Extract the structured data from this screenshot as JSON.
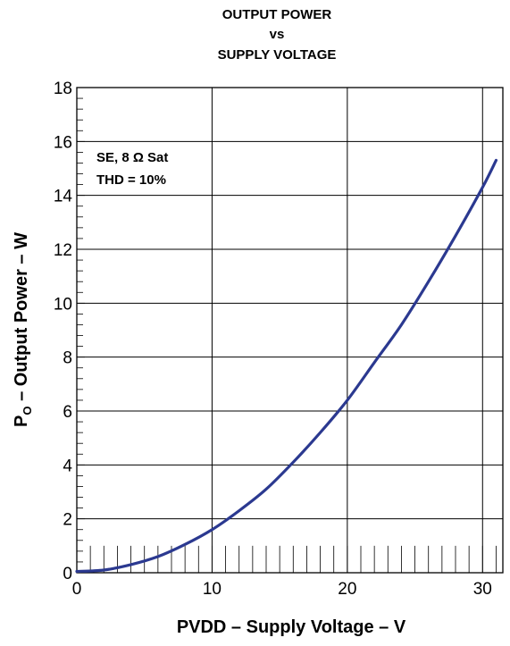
{
  "chart_data": {
    "type": "line",
    "title_lines": [
      "OUTPUT POWER",
      "vs",
      "SUPPLY VOLTAGE"
    ],
    "xlabel": "PVDD – Supply Voltage – V",
    "ylabel_prefix": "P",
    "ylabel_subscript": "O",
    "ylabel_suffix": " – Output Power – W",
    "xlim": [
      0,
      31.5
    ],
    "ylim": [
      0,
      18
    ],
    "xticks": [
      "0",
      "10",
      "20",
      "30"
    ],
    "yticks": [
      "0",
      "2",
      "4",
      "6",
      "8",
      "10",
      "12",
      "14",
      "16",
      "18"
    ],
    "grid": true,
    "annotation_lines": [
      "SE, 8 Ω Sat",
      "THD = 10%"
    ],
    "series_color": "#2B3990",
    "series": [
      {
        "x": [
          0,
          2,
          4,
          6,
          8,
          10,
          12,
          14,
          16,
          18,
          20,
          22,
          24,
          26,
          28,
          30,
          31
        ],
        "y": [
          0.05,
          0.1,
          0.3,
          0.6,
          1.05,
          1.6,
          2.3,
          3.1,
          4.1,
          5.2,
          6.4,
          7.8,
          9.2,
          10.8,
          12.5,
          14.3,
          15.3
        ]
      }
    ]
  }
}
